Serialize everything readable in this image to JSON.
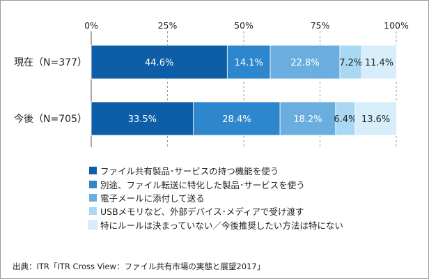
{
  "chart_data": {
    "type": "bar",
    "orientation": "horizontal",
    "stacked": true,
    "categories": [
      "現在（N=377）",
      "今後（N=705）"
    ],
    "series": [
      {
        "name": "ファイル共有製品･サービスの持つ機能を使う",
        "values": [
          44.6,
          33.5
        ],
        "color": "#0d5ea7"
      },
      {
        "name": "別途、ファイル転送に特化した製品･サービスを使う",
        "values": [
          14.1,
          28.4
        ],
        "color": "#2e86cc"
      },
      {
        "name": "電子メールに添付して送る",
        "values": [
          22.8,
          18.2
        ],
        "color": "#6aaee0"
      },
      {
        "name": "USBメモリなど、外部デバイス･メディアで受け渡す",
        "values": [
          7.2,
          6.4
        ],
        "color": "#a9d8f4"
      },
      {
        "name": "特にルールは決まっていない／今後推奨したい方法は特にない",
        "values": [
          11.4,
          13.6
        ],
        "color": "#d7eefa"
      }
    ],
    "xlim": [
      0,
      100
    ],
    "xticks": [
      "0%",
      "25%",
      "50%",
      "75%",
      "100%"
    ],
    "value_suffix": "%",
    "grid": "dashed vertical",
    "legend_position": "bottom"
  },
  "source": "出典：ITR「ITR Cross View：ファイル共有市場の実態と展望2017」"
}
